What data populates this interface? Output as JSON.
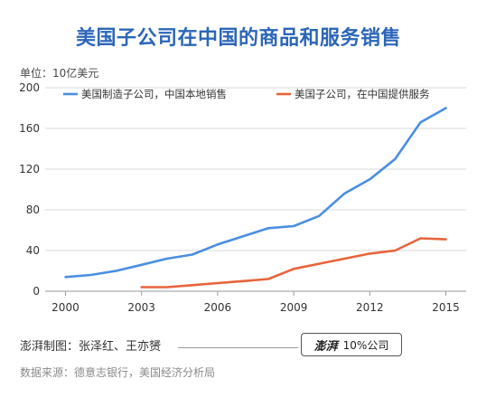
{
  "chart_data": {
    "type": "line",
    "title": "美国子公司在中国的商品和服务销售",
    "unit_label": "单位：10亿美元",
    "xlabel": "",
    "ylabel": "",
    "ylim": [
      0,
      200
    ],
    "xlim": [
      1999.2,
      2015.8
    ],
    "y_ticks": [
      0,
      40,
      80,
      120,
      160,
      200
    ],
    "x_ticks": [
      2000,
      2003,
      2006,
      2009,
      2012,
      2015
    ],
    "grid": "horizontal",
    "legend_position": "top",
    "series": [
      {
        "name": "美国制造子公司，中国本地销售",
        "color": "#4a8fe0",
        "x": [
          2000,
          2001,
          2002,
          2003,
          2004,
          2005,
          2006,
          2007,
          2008,
          2009,
          2010,
          2011,
          2012,
          2013,
          2014,
          2015
        ],
        "values": [
          14,
          16,
          20,
          26,
          32,
          36,
          46,
          54,
          62,
          64,
          74,
          96,
          110,
          130,
          166,
          180
        ]
      },
      {
        "name": "美国子公司，在中国提供服务",
        "color": "#e8643c",
        "x": [
          2003,
          2004,
          2005,
          2006,
          2007,
          2008,
          2009,
          2010,
          2011,
          2012,
          2013,
          2014,
          2015
        ],
        "values": [
          4,
          4,
          6,
          8,
          10,
          12,
          22,
          27,
          32,
          37,
          40,
          52,
          51
        ]
      }
    ]
  },
  "footer": {
    "credit": "澎湃制图：张泽红、王亦赟",
    "stamp_logo": "澎湃",
    "stamp_text": "10%公司",
    "source": "数据来源：德意志银行，美国经济分析局"
  }
}
